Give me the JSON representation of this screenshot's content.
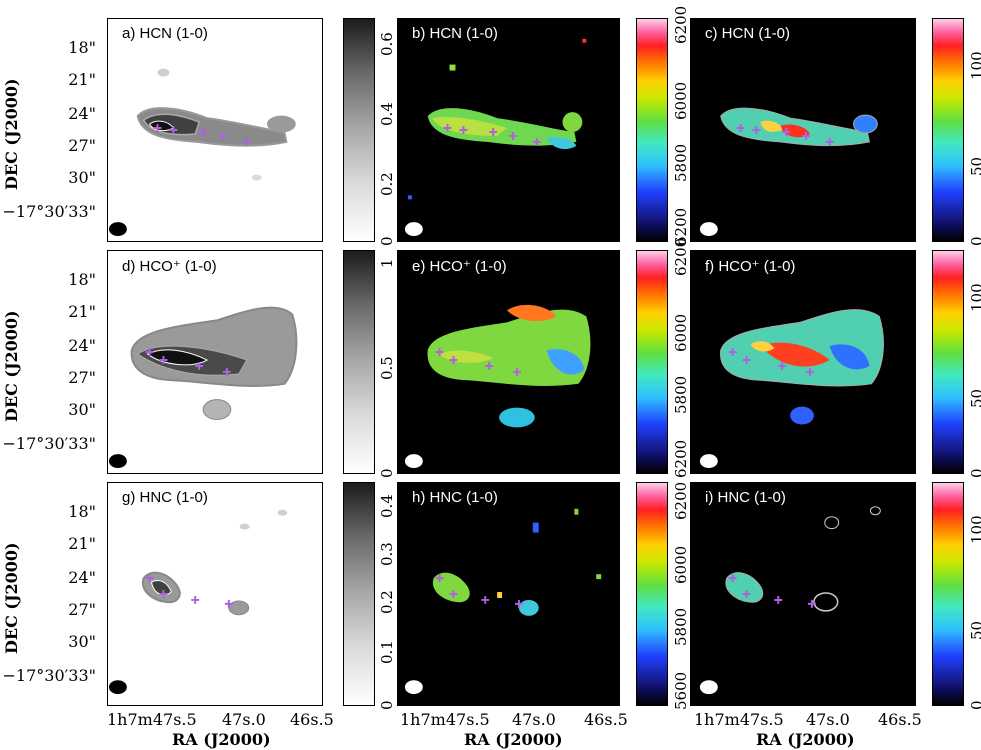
{
  "figure": {
    "panels": [
      {
        "label": "a) HCN (1-0)",
        "kind": "gray"
      },
      {
        "label": "b) HCN (1-0)",
        "kind": "dark"
      },
      {
        "label": "c) HCN (1-0)",
        "kind": "dark"
      },
      {
        "label": "d) HCO⁺ (1-0)",
        "kind": "gray"
      },
      {
        "label": "e) HCO⁺ (1-0)",
        "kind": "dark"
      },
      {
        "label": "f) HCO⁺ (1-0)",
        "kind": "dark"
      },
      {
        "label": "g) HNC (1-0)",
        "kind": "gray"
      },
      {
        "label": "h) HNC (1-0)",
        "kind": "dark"
      },
      {
        "label": "i) HNC (1-0)",
        "kind": "dark"
      }
    ],
    "colorbars": {
      "row1": {
        "gray": [
          "0",
          "0.2",
          "0.4",
          "0.6"
        ],
        "velocity": [
          "6200",
          "6000",
          "5800",
          "6200"
        ],
        "dispersion": [
          "0",
          "50",
          "100"
        ]
      },
      "row2": {
        "gray": [
          "0",
          "0.5",
          "1"
        ],
        "velocity": [
          "6200",
          "6000",
          "5800",
          "6200"
        ],
        "dispersion": [
          "0",
          "50",
          "100"
        ]
      },
      "row3": {
        "gray": [
          "0",
          "0.1",
          "0.2",
          "0.3",
          "0.4"
        ],
        "velocity": [
          "5600",
          "5800",
          "6000",
          "6200"
        ],
        "dispersion": [
          "0",
          "50",
          "100"
        ]
      }
    },
    "axes": {
      "y_ticks": [
        "18\"",
        "21\"",
        "24\"",
        "27\"",
        "30\"",
        "−17°30′33\""
      ],
      "y_label": "DEC (J2000)",
      "x_ticks": [
        "1h7m47s.5",
        "47s.0",
        "46s.5"
      ],
      "x_label": "RA (J2000)"
    }
  }
}
